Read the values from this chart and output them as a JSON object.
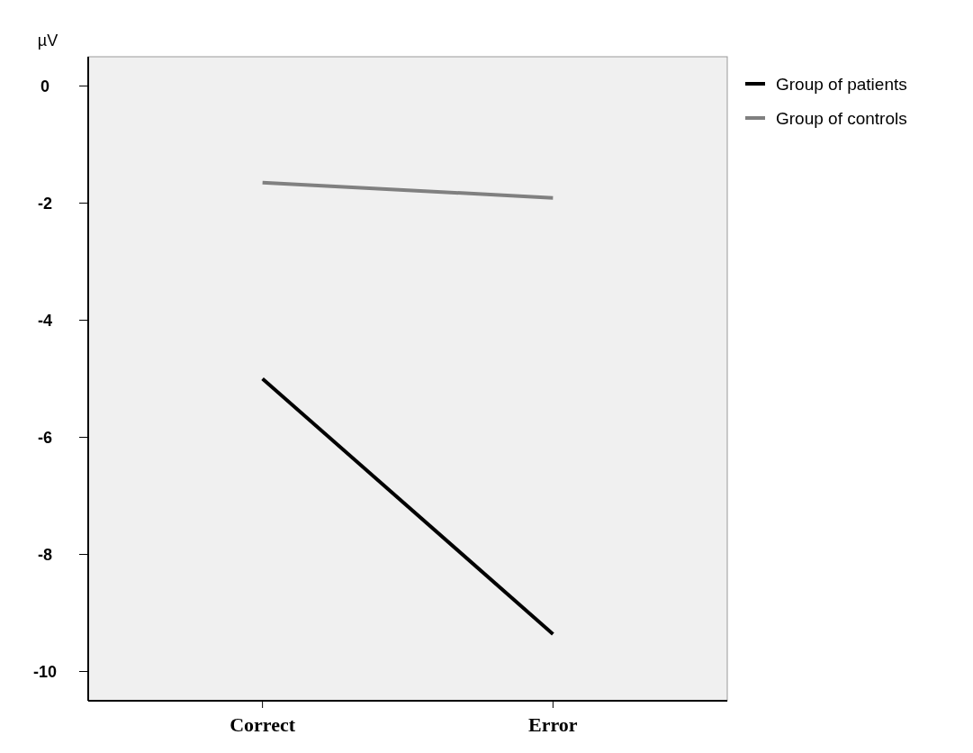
{
  "chart_data": {
    "type": "line",
    "ylabel": "µV",
    "categories": [
      "Correct",
      "Error"
    ],
    "series": [
      {
        "name": "Group of patients",
        "color": "#000000",
        "values": [
          -5.0,
          -9.36
        ]
      },
      {
        "name": "Group of controls",
        "color": "#808080",
        "values": [
          -1.65,
          -1.91
        ]
      }
    ],
    "ylim": [
      -10.5,
      0.5
    ],
    "yticks": [
      0,
      -2,
      -4,
      -6,
      -8,
      -10
    ],
    "grid": false,
    "legend": "top right",
    "marker": "none",
    "line_style": "solid"
  }
}
